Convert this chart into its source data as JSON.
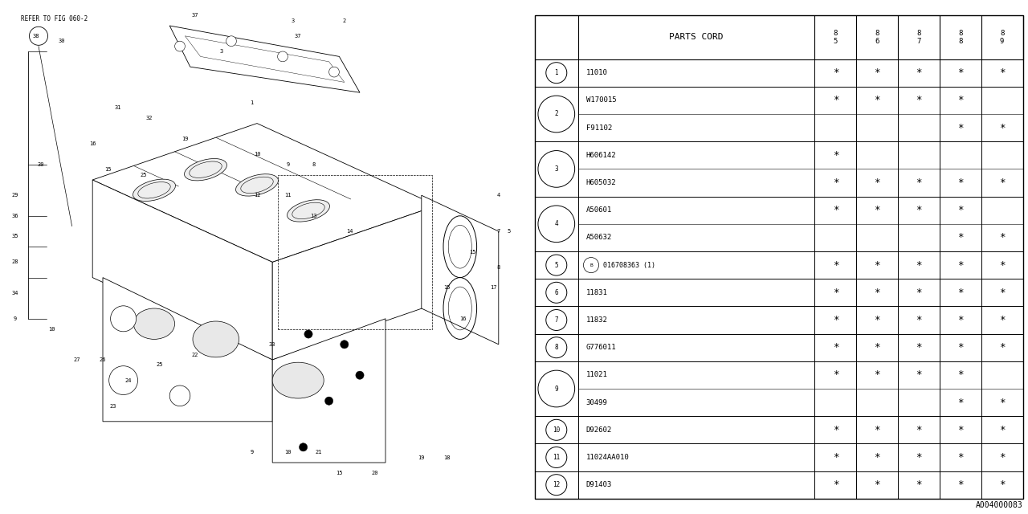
{
  "ref_code": "A004000083",
  "table_header": "PARTS CORD",
  "year_cols": [
    "8\n5",
    "8\n6",
    "8\n7",
    "8\n8",
    "8\n9"
  ],
  "rows": [
    {
      "num": "1",
      "parts": [
        {
          "code": "11010",
          "stars": [
            1,
            1,
            1,
            1,
            1
          ]
        }
      ]
    },
    {
      "num": "2",
      "parts": [
        {
          "code": "W170015",
          "stars": [
            1,
            1,
            1,
            1,
            0
          ]
        },
        {
          "code": "F91102",
          "stars": [
            0,
            0,
            0,
            1,
            1
          ]
        }
      ]
    },
    {
      "num": "3",
      "parts": [
        {
          "code": "H606142",
          "stars": [
            1,
            0,
            0,
            0,
            0
          ]
        },
        {
          "code": "H605032",
          "stars": [
            1,
            1,
            1,
            1,
            1
          ]
        }
      ]
    },
    {
      "num": "4",
      "parts": [
        {
          "code": "A50601",
          "stars": [
            1,
            1,
            1,
            1,
            0
          ]
        },
        {
          "code": "A50632",
          "stars": [
            0,
            0,
            0,
            1,
            1
          ]
        }
      ]
    },
    {
      "num": "5",
      "parts": [
        {
          "code": "B016708363 (1)",
          "stars": [
            1,
            1,
            1,
            1,
            1
          ],
          "b_circle": true
        }
      ]
    },
    {
      "num": "6",
      "parts": [
        {
          "code": "11831",
          "stars": [
            1,
            1,
            1,
            1,
            1
          ]
        }
      ]
    },
    {
      "num": "7",
      "parts": [
        {
          "code": "11832",
          "stars": [
            1,
            1,
            1,
            1,
            1
          ]
        }
      ]
    },
    {
      "num": "8",
      "parts": [
        {
          "code": "G776011",
          "stars": [
            1,
            1,
            1,
            1,
            1
          ]
        }
      ]
    },
    {
      "num": "9",
      "parts": [
        {
          "code": "11021",
          "stars": [
            1,
            1,
            1,
            1,
            0
          ]
        },
        {
          "code": "30499",
          "stars": [
            0,
            0,
            0,
            1,
            1
          ]
        }
      ]
    },
    {
      "num": "10",
      "parts": [
        {
          "code": "D92602",
          "stars": [
            1,
            1,
            1,
            1,
            1
          ]
        }
      ]
    },
    {
      "num": "11",
      "parts": [
        {
          "code": "11024AA010",
          "stars": [
            1,
            1,
            1,
            1,
            1
          ]
        }
      ]
    },
    {
      "num": "12",
      "parts": [
        {
          "code": "D91403",
          "stars": [
            1,
            1,
            1,
            1,
            1
          ]
        }
      ]
    }
  ],
  "bg_color": "#ffffff",
  "diagram_ref": "REFER TO FIG 060-2"
}
